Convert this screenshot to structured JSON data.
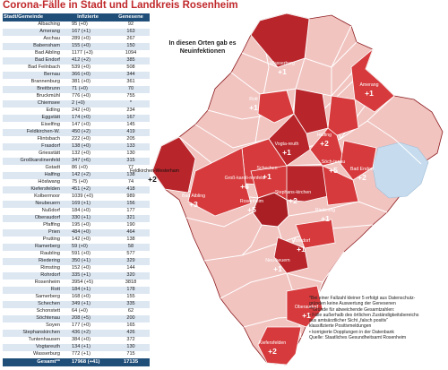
{
  "title": "Corona-Fälle in Stadt und Landkreis Rosenheim",
  "table": {
    "headers": [
      "Stadt/Gemeinde",
      "Infizierte",
      "Genesene"
    ],
    "rows": [
      [
        "Albaching",
        "95 (+0)",
        "92"
      ],
      [
        "Amerang",
        "167 (+1)",
        "163"
      ],
      [
        "Aschau",
        "289 (+0)",
        "267"
      ],
      [
        "Babensham",
        "155 (+0)",
        "150"
      ],
      [
        "Bad Aibling",
        "1177 (+3)",
        "1094"
      ],
      [
        "Bad Endorf",
        "412 (+2)",
        "385"
      ],
      [
        "Bad Feilnbach",
        "539 (+0)",
        "508"
      ],
      [
        "Bernau",
        "366 (+0)",
        "344"
      ],
      [
        "Brannenburg",
        "381 (+0)",
        "361"
      ],
      [
        "Breitbrunn",
        "71 (+0)",
        "70"
      ],
      [
        "Bruckmühl",
        "776 (+0)",
        "755"
      ],
      [
        "Chiemsee",
        "2 (+0)",
        "*"
      ],
      [
        "Edling",
        "242 (+0)",
        "234"
      ],
      [
        "Eggstätt",
        "174 (+0)",
        "167"
      ],
      [
        "Eiselfing",
        "147 (+0)",
        "145"
      ],
      [
        "Feldkirchen-W.",
        "450 (+2)",
        "419"
      ],
      [
        "Flintsbach",
        "222 (+0)",
        "205"
      ],
      [
        "Frasdorf",
        "138 (+0)",
        "133"
      ],
      [
        "Griesstätt",
        "132 (+0)",
        "130"
      ],
      [
        "Großkarolinenfeld",
        "347 (+6)",
        "315"
      ],
      [
        "Gstadt",
        "86 (+0)",
        "77"
      ],
      [
        "Halfing",
        "142 (+2)",
        "138"
      ],
      [
        "Höslwang",
        "75 (+0)",
        "74"
      ],
      [
        "Kiefersfelden",
        "451 (+2)",
        "418"
      ],
      [
        "Kolbermoor",
        "1039 (+0)",
        "989"
      ],
      [
        "Neubeuern",
        "169 (+1)",
        "156"
      ],
      [
        "Nußdorf",
        "184 (+0)",
        "177"
      ],
      [
        "Oberaudorf",
        "330 (+1)",
        "321"
      ],
      [
        "Pfaffing",
        "195 (+0)",
        "190"
      ],
      [
        "Prien",
        "484 (+0)",
        "464"
      ],
      [
        "Prutting",
        "142 (+0)",
        "138"
      ],
      [
        "Ramerberg",
        "59 (+0)",
        "58"
      ],
      [
        "Raubling",
        "591 (+0)",
        "577"
      ],
      [
        "Riedering",
        "350 (+1)",
        "329"
      ],
      [
        "Rimsting",
        "152 (+0)",
        "144"
      ],
      [
        "Rohrdorf",
        "335 (+1)",
        "320"
      ],
      [
        "Rosenheim",
        "3954 (+5)",
        "3818"
      ],
      [
        "Rott",
        "184 (+1)",
        "178"
      ],
      [
        "Samerberg",
        "168 (+0)",
        "155"
      ],
      [
        "Schechen",
        "349 (+1)",
        "335"
      ],
      [
        "Schonstett",
        "64 (+0)",
        "62"
      ],
      [
        "Söchtenau",
        "208 (+5)",
        "200"
      ],
      [
        "Soyen",
        "177 (+0)",
        "165"
      ],
      [
        "Stephanskirchen",
        "436 (+2)",
        "426"
      ],
      [
        "Tuntenhausen",
        "384 (+0)",
        "372"
      ],
      [
        "Vogtareuth",
        "134 (+1)",
        "130"
      ],
      [
        "Wasserburg",
        "772 (+1)",
        "715"
      ]
    ],
    "total": [
      "Gesamt**",
      "17968 (+41)",
      "17135"
    ]
  },
  "map": {
    "callout": "In diesen Orten gab es Neuinfektionen",
    "colors": {
      "base": "#f1c4c0",
      "base_stroke": "#ffffff",
      "highlight": "#d63a3c",
      "highlight_dark": "#b8252a",
      "city": "#a91f24",
      "lake": "#c6dcee",
      "outline": "#8c1a1e"
    },
    "labels": [
      {
        "name": "Wasserburg",
        "inc": "+1"
      },
      {
        "name": "Amerang",
        "inc": "+1"
      },
      {
        "name": "Rott",
        "inc": "+1"
      },
      {
        "name": "Vogta-reuth",
        "inc": "+1"
      },
      {
        "name": "Halfing",
        "inc": "+2"
      },
      {
        "name": "Söch-tenau",
        "inc": "+5"
      },
      {
        "name": "Schechen",
        "inc": "+1"
      },
      {
        "name": "Groß-karoli-nenfeld",
        "inc": "+6"
      },
      {
        "name": "Bad Endorf",
        "inc": "+2"
      },
      {
        "name": "Feldkirchen-Westerham",
        "inc": "+2"
      },
      {
        "name": "Bad Aibling",
        "inc": "+3"
      },
      {
        "name": "Rosenheim",
        "inc": "+5"
      },
      {
        "name": "Stephans-kirchen",
        "inc": "+2"
      },
      {
        "name": "Riedering",
        "inc": "+1"
      },
      {
        "name": "Rohrdorf",
        "inc": "+1"
      },
      {
        "name": "Neu-beuern",
        "inc": "+1"
      },
      {
        "name": "Oberaudorf",
        "inc": "+1"
      },
      {
        "name": "Kiefersfelden",
        "inc": "+2"
      }
    ]
  },
  "footnotes": [
    "*Bei einer Fallzahl kleiner 5 erfolgt aus Datenschutz-",
    "  gründen keine Auswertung der Genesenen",
    "**Gründe für abweichende Gesamtzahlen:",
    "• Fälle außerhalb des örtlichen Zuständigkeitsbereichs",
    "  aus amtsärztlicher Sicht „falsch positiv“",
    "  klassifizierte Positivmeldungen",
    "• korrigierte Dopplungen in der Datenbank",
    "Quelle: Staatliches Gesundheitsamt Rosenheim"
  ]
}
